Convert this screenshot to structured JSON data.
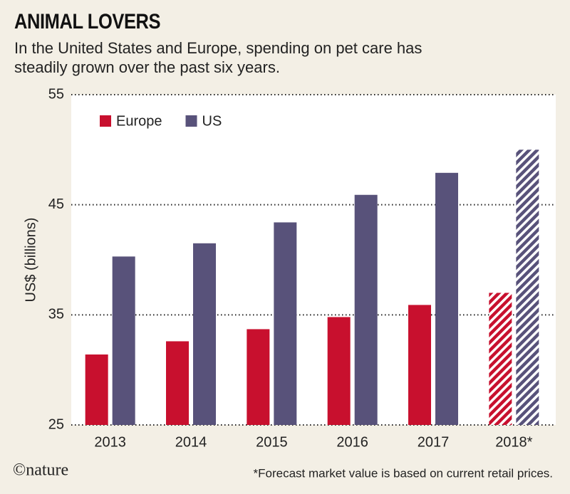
{
  "chart_data": {
    "type": "bar",
    "title": "ANIMAL LOVERS",
    "subtitle": "In the United States and Europe, spending on pet care has steadily grown over the past six years.",
    "y_label": "US$ (billions)",
    "footnote": "*Forecast market value is based on current retail prices.",
    "source_logo": "©nature",
    "categories": [
      "2013",
      "2014",
      "2015",
      "2016",
      "2017",
      "2018*"
    ],
    "hatched": [
      false,
      false,
      false,
      false,
      false,
      true
    ],
    "series": [
      {
        "name": "Europe",
        "color": "#c8102e",
        "values": [
          31.4,
          32.6,
          33.7,
          34.8,
          35.9,
          37.0
        ]
      },
      {
        "name": "US",
        "color": "#58527a",
        "values": [
          40.3,
          41.5,
          43.4,
          45.9,
          47.9,
          50.0
        ]
      }
    ],
    "ylim": [
      25,
      55
    ],
    "yticks": [
      25,
      35,
      45,
      55
    ],
    "grid": true
  }
}
